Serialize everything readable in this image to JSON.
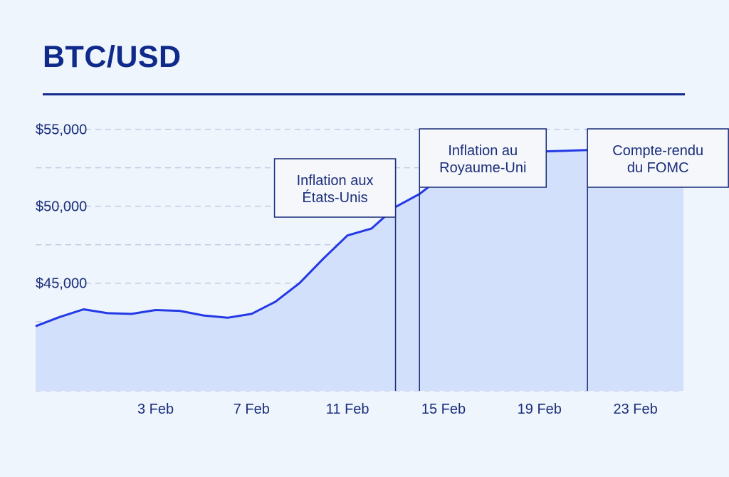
{
  "header": {
    "title": "BTC/USD"
  },
  "chart_data": {
    "type": "area",
    "title": "BTC/USD",
    "x": [
      "2024-01-29",
      "2024-01-30",
      "2024-01-31",
      "2024-02-01",
      "2024-02-02",
      "2024-02-03",
      "2024-02-04",
      "2024-02-05",
      "2024-02-06",
      "2024-02-07",
      "2024-02-08",
      "2024-02-09",
      "2024-02-10",
      "2024-02-11",
      "2024-02-12",
      "2024-02-13",
      "2024-02-14",
      "2024-02-15",
      "2024-02-16",
      "2024-02-17",
      "2024-02-18",
      "2024-02-19",
      "2024-02-20",
      "2024-02-21",
      "2024-02-22",
      "2024-02-23",
      "2024-02-24",
      "2024-02-25"
    ],
    "values": [
      42200,
      42800,
      43300,
      43050,
      43000,
      43250,
      43200,
      42900,
      42750,
      43000,
      43800,
      45000,
      46600,
      48100,
      48550,
      49950,
      50800,
      52000,
      53500,
      53650,
      53550,
      53550,
      53600,
      53650,
      53600,
      52900,
      53100,
      53350
    ],
    "x_tick_labels": [
      "3 Feb",
      "7 Feb",
      "11 Feb",
      "15 Feb",
      "19 Feb",
      "23 Feb"
    ],
    "x_tick_dates": [
      "2024-02-03",
      "2024-02-07",
      "2024-02-11",
      "2024-02-15",
      "2024-02-19",
      "2024-02-23"
    ],
    "y_ticks": [
      45000,
      50000,
      55000
    ],
    "y_tick_labels": [
      "$45,000",
      "$50,000",
      "$55,000"
    ],
    "ylim": [
      38000,
      56000
    ],
    "grid": true,
    "annotations": [
      {
        "date": "2024-02-13",
        "text": [
          "Inflation aux",
          "États-Unis"
        ]
      },
      {
        "date": "2024-02-14",
        "text": [
          "Inflation au",
          "Royaume-Uni"
        ]
      },
      {
        "date": "2024-02-21",
        "text": [
          "Compte-rendu",
          "du FOMC"
        ]
      }
    ],
    "colors": {
      "line": "#2339e6",
      "fill": "#d3e0fb",
      "grid": "#c3cde0",
      "text": "#1a2d7a"
    }
  }
}
